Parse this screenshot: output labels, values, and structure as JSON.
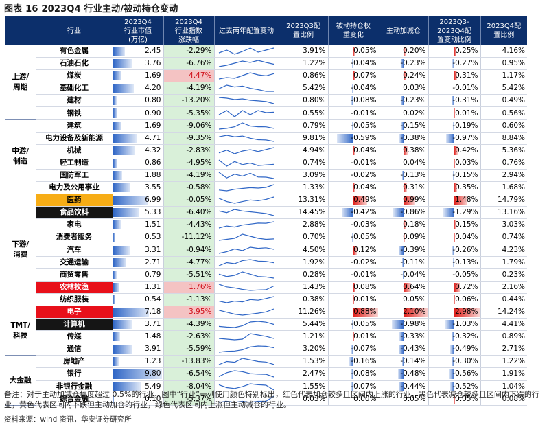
{
  "title": "图表 16 2023Q4 行业主动/被动持仓变动",
  "headers": [
    "行业",
    "2023Q4\n行业市值\n(万亿)",
    "2023Q4\n行业指数\n涨跌幅",
    "过去两年配置变动",
    "2023Q3配\n置比例",
    "被动持仓权\n重变化",
    "主动加减仓",
    "2023Q3-\n2023Q4配\n置变动比例",
    "2023Q4配\n置比例"
  ],
  "groups": [
    {
      "name": "上游/\n周期",
      "rows": 6
    },
    {
      "name": "中游/\n制造",
      "rows": 6
    },
    {
      "name": "下游/\n消费",
      "rows": 9
    },
    {
      "name": "TMT/\n科技",
      "rows": 4
    },
    {
      "name": "大金融",
      "rows": 4
    }
  ],
  "rows": [
    {
      "industry": "有色金属",
      "cap": "2.45",
      "capv": 2.45,
      "chg": "-2.29%",
      "q3": "3.91%",
      "passive": "0.05%",
      "pv": 0.05,
      "active": "0.20%",
      "av": 0.2,
      "delta": "0.25%",
      "dv": 0.25,
      "q4": "4.16%",
      "spark": [
        3.2,
        3.6,
        3.0,
        3.4,
        3.9,
        3.3,
        3.6,
        3.9
      ]
    },
    {
      "industry": "石油石化",
      "cap": "3.76",
      "capv": 3.76,
      "chg": "-6.76%",
      "q3": "1.22%",
      "passive": "-0.04%",
      "pv": -0.04,
      "active": "-0.23%",
      "av": -0.23,
      "delta": "-0.27%",
      "dv": -0.27,
      "q4": "0.95%",
      "spark": [
        0.6,
        0.8,
        1.1,
        1.4,
        1.2,
        1.5,
        1.2,
        0.95
      ]
    },
    {
      "industry": "煤炭",
      "cap": "1.69",
      "capv": 1.69,
      "chg": "4.47%",
      "q3": "0.86%",
      "passive": "0.07%",
      "pv": 0.07,
      "active": "0.24%",
      "av": 0.24,
      "delta": "0.31%",
      "dv": 0.31,
      "q4": "1.17%",
      "spark": [
        0.4,
        0.6,
        0.5,
        0.9,
        1.3,
        1.0,
        0.86,
        1.17
      ]
    },
    {
      "industry": "基础化工",
      "cap": "4.20",
      "capv": 4.2,
      "chg": "-4.19%",
      "q3": "5.42%",
      "passive": "-0.04%",
      "pv": -0.04,
      "active": "0.03%",
      "av": 0.03,
      "delta": "-0.01%",
      "dv": -0.01,
      "q4": "5.42%",
      "spark": [
        6.0,
        6.8,
        6.4,
        6.6,
        6.1,
        5.8,
        5.42,
        5.42
      ]
    },
    {
      "industry": "建材",
      "cap": "0.80",
      "capv": 0.8,
      "chg": "-13.20%",
      "q3": "0.80%",
      "passive": "-0.08%",
      "pv": -0.08,
      "active": "-0.23%",
      "av": -0.23,
      "delta": "-0.31%",
      "dv": -0.31,
      "q4": "0.49%",
      "spark": [
        1.4,
        1.3,
        1.1,
        1.2,
        1.0,
        0.9,
        0.8,
        0.49
      ]
    },
    {
      "industry": "钢铁",
      "cap": "0.90",
      "capv": 0.9,
      "chg": "-5.35%",
      "q3": "0.55%",
      "passive": "-0.01%",
      "pv": -0.01,
      "active": "0.02%",
      "av": 0.02,
      "delta": "0.01%",
      "dv": 0.01,
      "q4": "0.56%",
      "spark": [
        0.5,
        0.6,
        0.45,
        0.6,
        0.5,
        0.6,
        0.55,
        0.56
      ]
    },
    {
      "industry": "建筑",
      "cap": "1.69",
      "capv": 1.69,
      "chg": "-9.06%",
      "q3": "0.79%",
      "passive": "-0.05%",
      "pv": -0.05,
      "active": "-0.15%",
      "av": -0.15,
      "delta": "-0.19%",
      "dv": -0.19,
      "q4": "0.60%",
      "spark": [
        0.5,
        0.6,
        0.8,
        1.3,
        0.9,
        0.8,
        0.79,
        0.6
      ]
    },
    {
      "industry": "电力设备及新能源",
      "cap": "4.71",
      "capv": 4.71,
      "chg": "-9.35%",
      "q3": "9.81%",
      "passive": "-0.59%",
      "pv": -0.59,
      "active": "-0.38%",
      "av": -0.38,
      "delta": "-0.97%",
      "dv": -0.97,
      "q4": "8.84%",
      "spark": [
        12,
        13,
        12,
        12.5,
        11,
        10,
        9.81,
        8.84
      ]
    },
    {
      "industry": "机械",
      "cap": "4.32",
      "capv": 4.32,
      "chg": "-2.83%",
      "q3": "4.94%",
      "passive": "0.04%",
      "pv": 0.04,
      "active": "0.38%",
      "av": 0.38,
      "delta": "0.42%",
      "dv": 0.42,
      "q4": "5.36%",
      "spark": [
        4.2,
        4.8,
        4.0,
        4.6,
        4.9,
        4.5,
        4.94,
        5.36
      ]
    },
    {
      "industry": "轻工制造",
      "cap": "0.86",
      "capv": 0.86,
      "chg": "-4.95%",
      "q3": "0.74%",
      "passive": "-0.01%",
      "pv": -0.01,
      "active": "0.04%",
      "av": 0.04,
      "delta": "0.03%",
      "dv": 0.03,
      "q4": "0.76%",
      "spark": [
        0.9,
        0.7,
        0.85,
        0.75,
        0.8,
        0.72,
        0.74,
        0.76
      ]
    },
    {
      "industry": "国防军工",
      "cap": "1.88",
      "capv": 1.88,
      "chg": "-4.19%",
      "q3": "3.09%",
      "passive": "-0.02%",
      "pv": -0.02,
      "active": "-0.13%",
      "av": -0.13,
      "delta": "-0.15%",
      "dv": -0.15,
      "q4": "2.94%",
      "spark": [
        3.6,
        3.0,
        3.4,
        3.2,
        3.5,
        3.1,
        3.09,
        2.94
      ]
    },
    {
      "industry": "电力及公用事业",
      "cap": "3.55",
      "capv": 3.55,
      "chg": "-0.58%",
      "q3": "1.33%",
      "passive": "0.04%",
      "pv": 0.04,
      "active": "0.31%",
      "av": 0.31,
      "delta": "0.35%",
      "dv": 0.35,
      "q4": "1.68%",
      "spark": [
        1.0,
        0.9,
        1.1,
        1.2,
        1.3,
        1.25,
        1.33,
        1.68
      ]
    },
    {
      "industry": "医药",
      "cap": "6.99",
      "capv": 6.99,
      "chg": "-0.05%",
      "q3": "13.31%",
      "passive": "0.49%",
      "pv": 0.49,
      "active": "0.99%",
      "av": 0.99,
      "delta": "1.48%",
      "dv": 1.48,
      "q4": "14.79%",
      "spark": [
        14,
        12,
        11,
        12,
        13,
        12.5,
        13.31,
        14.79
      ],
      "hl": "orange"
    },
    {
      "industry": "食品饮料",
      "cap": "5.33",
      "capv": 5.33,
      "chg": "-6.40%",
      "q3": "14.45%",
      "passive": "-0.42%",
      "pv": -0.42,
      "active": "-0.86%",
      "av": -0.86,
      "delta": "-1.29%",
      "dv": -1.29,
      "q4": "13.16%",
      "spark": [
        16,
        15,
        17,
        16,
        15.5,
        15,
        14.45,
        13.16
      ],
      "hl": "black"
    },
    {
      "industry": "家电",
      "cap": "1.51",
      "capv": 1.51,
      "chg": "-4.43%",
      "q3": "2.88%",
      "passive": "-0.03%",
      "pv": -0.03,
      "active": "0.18%",
      "av": 0.18,
      "delta": "0.15%",
      "dv": 0.15,
      "q4": "3.03%",
      "spark": [
        2.4,
        2.6,
        2.5,
        2.7,
        2.8,
        2.9,
        2.88,
        3.03
      ]
    },
    {
      "industry": "消费者服务",
      "cap": "0.53",
      "capv": 0.53,
      "chg": "-11.12%",
      "q3": "0.70%",
      "passive": "-0.05%",
      "pv": -0.05,
      "active": "0.09%",
      "av": 0.09,
      "delta": "0.04%",
      "dv": 0.04,
      "q4": "0.74%",
      "spark": [
        0.6,
        0.7,
        0.8,
        1.2,
        1.0,
        0.8,
        0.7,
        0.74
      ]
    },
    {
      "industry": "汽车",
      "cap": "3.31",
      "capv": 3.31,
      "chg": "-0.94%",
      "q3": "4.50%",
      "passive": "0.12%",
      "pv": 0.12,
      "active": "-0.39%",
      "av": -0.39,
      "delta": "-0.26%",
      "dv": -0.26,
      "q4": "4.23%",
      "spark": [
        3.5,
        3.8,
        4.3,
        4.0,
        4.6,
        4.4,
        4.5,
        4.23
      ]
    },
    {
      "industry": "交通运输",
      "cap": "2.71",
      "capv": 2.71,
      "chg": "-4.77%",
      "q3": "1.92%",
      "passive": "-0.02%",
      "pv": -0.02,
      "active": "-0.11%",
      "av": -0.11,
      "delta": "-0.13%",
      "dv": -0.13,
      "q4": "1.79%",
      "spark": [
        1.5,
        1.8,
        1.7,
        2.0,
        2.1,
        1.95,
        1.92,
        1.79
      ]
    },
    {
      "industry": "商贸零售",
      "cap": "0.79",
      "capv": 0.79,
      "chg": "-5.51%",
      "q3": "0.28%",
      "passive": "-0.01%",
      "pv": -0.01,
      "active": "-0.04%",
      "av": -0.04,
      "delta": "-0.05%",
      "dv": -0.05,
      "q4": "0.23%",
      "spark": [
        0.4,
        0.3,
        0.35,
        0.5,
        0.4,
        0.3,
        0.28,
        0.23
      ]
    },
    {
      "industry": "农林牧渔",
      "cap": "1.31",
      "capv": 1.31,
      "chg": "1.76%",
      "q3": "1.43%",
      "passive": "0.08%",
      "pv": 0.08,
      "active": "0.64%",
      "av": 0.64,
      "delta": "0.72%",
      "dv": 0.72,
      "q4": "2.16%",
      "spark": [
        2.5,
        2.0,
        1.8,
        1.5,
        1.3,
        1.4,
        1.43,
        2.16
      ],
      "hl": "red"
    },
    {
      "industry": "纺织服装",
      "cap": "0.54",
      "capv": 0.54,
      "chg": "-1.13%",
      "q3": "0.38%",
      "passive": "0.01%",
      "pv": 0.01,
      "active": "0.05%",
      "av": 0.05,
      "delta": "0.06%",
      "dv": 0.06,
      "q4": "0.44%",
      "spark": [
        0.3,
        0.25,
        0.3,
        0.28,
        0.35,
        0.33,
        0.38,
        0.44
      ]
    },
    {
      "industry": "电子",
      "cap": "7.18",
      "capv": 7.18,
      "chg": "3.95%",
      "q3": "11.26%",
      "passive": "0.88%",
      "pv": 0.88,
      "active": "2.10%",
      "av": 2.1,
      "delta": "2.98%",
      "dv": 2.98,
      "q4": "14.24%",
      "spark": [
        13,
        11,
        9,
        8,
        9,
        10,
        11.26,
        14.24
      ],
      "hl": "red"
    },
    {
      "industry": "计算机",
      "cap": "3.71",
      "capv": 3.71,
      "chg": "-4.39%",
      "q3": "5.44%",
      "passive": "-0.05%",
      "pv": -0.05,
      "active": "-0.98%",
      "av": -0.98,
      "delta": "-1.03%",
      "dv": -1.03,
      "q4": "4.41%",
      "spark": [
        3.5,
        3.2,
        3.0,
        3.8,
        5.5,
        5.8,
        5.44,
        4.41
      ],
      "hl": "black"
    },
    {
      "industry": "传媒",
      "cap": "1.48",
      "capv": 1.48,
      "chg": "-2.63%",
      "q3": "1.21%",
      "passive": "0.01%",
      "pv": 0.01,
      "active": "-0.33%",
      "av": -0.33,
      "delta": "-0.32%",
      "dv": -0.32,
      "q4": "0.89%",
      "spark": [
        0.9,
        0.8,
        0.7,
        0.8,
        1.6,
        1.4,
        1.21,
        0.89
      ]
    },
    {
      "industry": "通信",
      "cap": "3.91",
      "capv": 3.91,
      "chg": "-5.59%",
      "q3": "3.20%",
      "passive": "-0.07%",
      "pv": -0.07,
      "active": "-0.43%",
      "av": -0.43,
      "delta": "-0.49%",
      "dv": -0.49,
      "q4": "2.71%",
      "spark": [
        1.2,
        1.5,
        1.6,
        2.0,
        3.0,
        3.3,
        3.2,
        2.71
      ]
    },
    {
      "industry": "房地产",
      "cap": "1.23",
      "capv": 1.23,
      "chg": "-13.83%",
      "q3": "1.53%",
      "passive": "-0.16%",
      "pv": -0.16,
      "active": "-0.14%",
      "av": -0.14,
      "delta": "-0.30%",
      "dv": -0.3,
      "q4": "1.22%",
      "spark": [
        1.2,
        1.6,
        1.5,
        2.0,
        1.8,
        1.6,
        1.53,
        1.22
      ]
    },
    {
      "industry": "银行",
      "cap": "9.80",
      "capv": 9.8,
      "chg": "-6.54%",
      "q3": "2.47%",
      "passive": "-0.08%",
      "pv": -0.08,
      "active": "-0.48%",
      "av": -0.48,
      "delta": "-0.56%",
      "dv": -0.56,
      "q4": "1.91%",
      "spark": [
        2.0,
        2.8,
        3.2,
        3.0,
        2.6,
        2.5,
        2.47,
        1.91
      ]
    },
    {
      "industry": "非银行金融",
      "cap": "5.49",
      "capv": 5.49,
      "chg": "-8.04%",
      "q3": "1.55%",
      "passive": "-0.07%",
      "pv": -0.07,
      "active": "-0.44%",
      "av": -0.44,
      "delta": "-0.52%",
      "dv": -0.52,
      "q4": "1.04%",
      "spark": [
        1.6,
        1.3,
        1.2,
        1.4,
        1.7,
        1.6,
        1.55,
        1.04
      ]
    },
    {
      "industry": "综合金融",
      "cap": "0.10",
      "capv": 0.1,
      "chg": "-5.37%",
      "q3": "0.03%",
      "passive": "0.00%",
      "pv": 0.0,
      "active": "0.05%",
      "av": 0.05,
      "delta": "0.05%",
      "dv": 0.05,
      "q4": "0.08%",
      "spark": [
        0.02,
        0.03,
        0.02,
        0.03,
        0.02,
        0.03,
        0.03,
        0.08
      ]
    }
  ],
  "note": "备注：对于主动加减仓幅度超过 0.5%的行业，图中“行业”一列使用颜色特别标出，红色代表加仓较多且区间内上涨的行业，黑色代表减仓较多且区间内下跌的行业，黄色代表区间内下跌但主动加仓的行业，绿色代表区间内上涨但主动减仓的行业。",
  "source": "资料来源：wind 资讯，华安证券研究所",
  "colors": {
    "header_bg": "#0c2f6b",
    "up_red": "#e0201b",
    "down_blue": "#2f66c6",
    "green_fill": "#d9f0d9",
    "red_fill": "#f4c3c3",
    "orange": "#f7ad16"
  }
}
